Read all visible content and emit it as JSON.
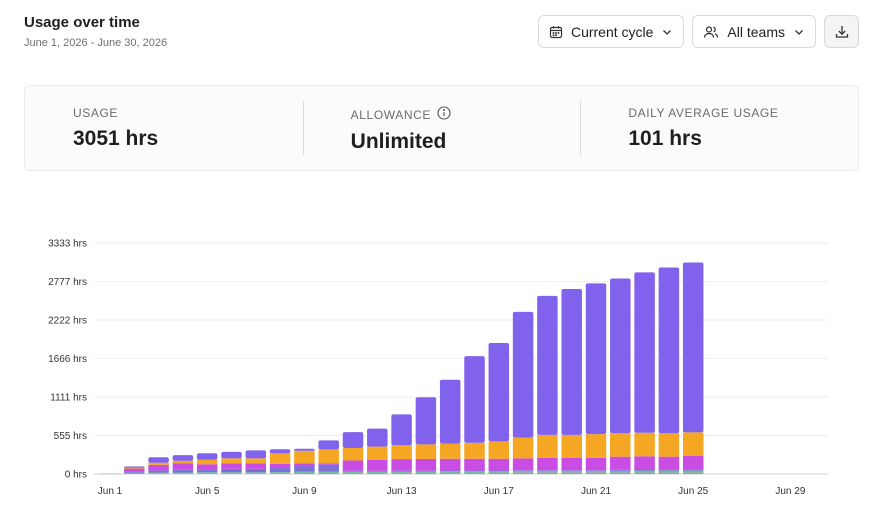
{
  "header": {
    "title": "Usage over time",
    "date_range": "June 1, 2026 - June 30, 2026"
  },
  "controls": {
    "cycle_label": "Current cycle",
    "teams_label": "All teams"
  },
  "stats": [
    {
      "label": "USAGE",
      "value": "3051 hrs"
    },
    {
      "label": "ALLOWANCE",
      "value": "Unlimited"
    },
    {
      "label": "DAILY AVERAGE USAGE",
      "value": "101 hrs"
    }
  ],
  "colors": {
    "purple": "#8062ec",
    "orange": "#f5a623",
    "magenta": "#c94ce3",
    "blue": "#7b6fd8",
    "teal": "#74b8a0",
    "gray": "#9e9e9e"
  },
  "chart_data": {
    "type": "bar",
    "stacked": true,
    "y_ticks": [
      "0 hrs",
      "555 hrs",
      "1111 hrs",
      "1666 hrs",
      "2222 hrs",
      "2777 hrs",
      "3333 hrs"
    ],
    "ylim": [
      0,
      3333
    ],
    "x_tick_labels": [
      "Jun 1",
      "Jun 5",
      "Jun 9",
      "Jun 13",
      "Jun 17",
      "Jun 21",
      "Jun 25",
      "Jun 29"
    ],
    "categories": [
      "Jun 1",
      "Jun 2",
      "Jun 3",
      "Jun 4",
      "Jun 5",
      "Jun 6",
      "Jun 7",
      "Jun 8",
      "Jun 9",
      "Jun 10",
      "Jun 11",
      "Jun 12",
      "Jun 13",
      "Jun 14",
      "Jun 15",
      "Jun 16",
      "Jun 17",
      "Jun 18",
      "Jun 19",
      "Jun 20",
      "Jun 21",
      "Jun 22",
      "Jun 23",
      "Jun 24",
      "Jun 25",
      "Jun 26",
      "Jun 27",
      "Jun 28",
      "Jun 29",
      "Jun 30"
    ],
    "series": [
      {
        "color": "#9e9e9e",
        "values": [
          5,
          8,
          10,
          10,
          10,
          10,
          10,
          12,
          15,
          15,
          15,
          15,
          15,
          15,
          15,
          15,
          15,
          20,
          20,
          20,
          20,
          20,
          20,
          20,
          20,
          0,
          0,
          0,
          0,
          0
        ]
      },
      {
        "color": "#74b8a0",
        "values": [
          0,
          10,
          12,
          12,
          15,
          15,
          15,
          15,
          20,
          20,
          20,
          20,
          20,
          22,
          25,
          25,
          25,
          25,
          25,
          25,
          25,
          25,
          30,
          30,
          30,
          0,
          0,
          0,
          0,
          0
        ]
      },
      {
        "color": "#7b6fd8",
        "values": [
          0,
          20,
          30,
          40,
          45,
          50,
          50,
          60,
          80,
          100,
          10,
          10,
          10,
          10,
          10,
          10,
          10,
          10,
          10,
          10,
          10,
          15,
          15,
          20,
          20,
          0,
          0,
          0,
          0,
          0
        ]
      },
      {
        "color": "#c94ce3",
        "values": [
          0,
          40,
          80,
          90,
          70,
          80,
          80,
          60,
          40,
          20,
          150,
          160,
          170,
          170,
          170,
          170,
          170,
          170,
          180,
          180,
          180,
          190,
          190,
          180,
          190,
          0,
          0,
          0,
          0,
          0
        ]
      },
      {
        "color": "#f5a623",
        "values": [
          0,
          10,
          30,
          40,
          70,
          70,
          70,
          150,
          180,
          200,
          180,
          190,
          200,
          210,
          220,
          230,
          250,
          300,
          330,
          330,
          340,
          340,
          340,
          340,
          340,
          0,
          0,
          0,
          0,
          0
        ]
      },
      {
        "color": "#8062ec",
        "values": [
          0,
          20,
          80,
          80,
          90,
          95,
          115,
          60,
          30,
          130,
          230,
          260,
          445,
          680,
          920,
          1250,
          1420,
          1815,
          2005,
          2105,
          2175,
          2230,
          2315,
          2390,
          2451,
          0,
          0,
          0,
          0,
          0
        ]
      }
    ]
  }
}
